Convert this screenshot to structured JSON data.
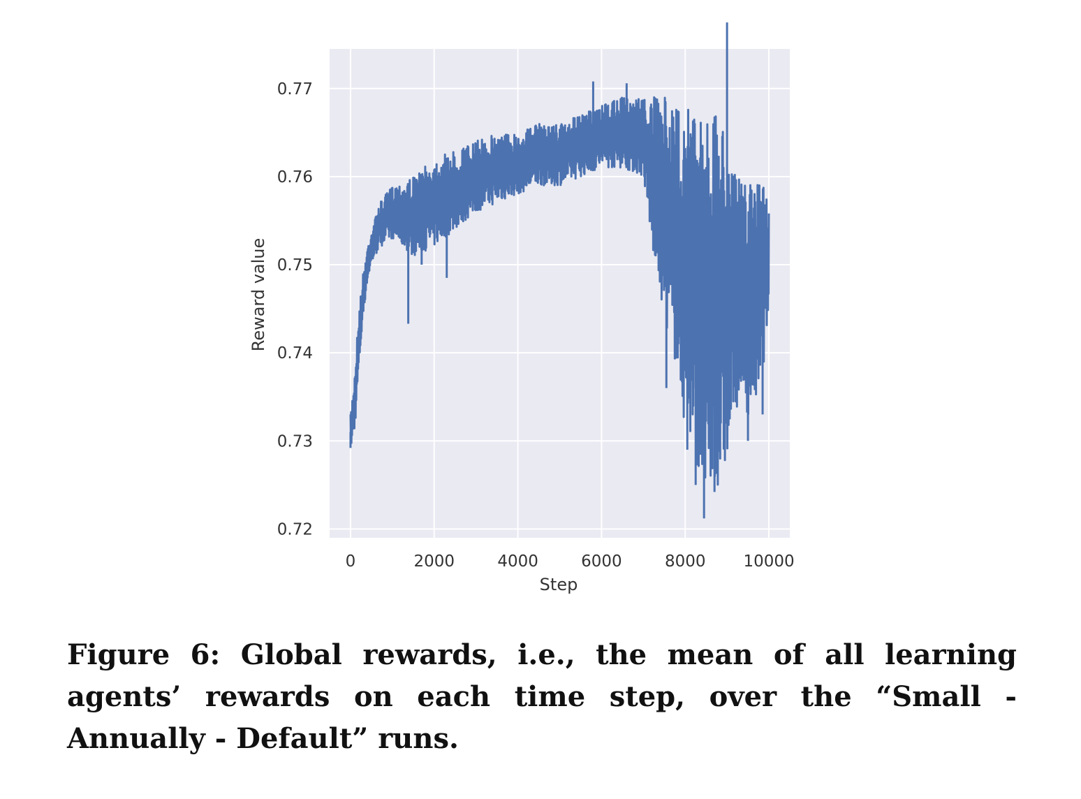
{
  "chart_data": {
    "type": "line",
    "xlabel": "Step",
    "ylabel": "Reward value",
    "xlim": [
      -500,
      10500
    ],
    "ylim": [
      0.719,
      0.7745
    ],
    "xticks": [
      0,
      2000,
      4000,
      6000,
      8000,
      10000
    ],
    "xtick_labels": [
      "0",
      "2000",
      "4000",
      "6000",
      "8000",
      "10000"
    ],
    "yticks": [
      0.72,
      0.73,
      0.74,
      0.75,
      0.76,
      0.77
    ],
    "ytick_labels": [
      "0.72",
      "0.73",
      "0.74",
      "0.75",
      "0.76",
      "0.77"
    ],
    "grid": true,
    "style": "seaborn-darkgrid",
    "line_color": "#4c72b0",
    "background_color": "#eaeaf2",
    "series": [
      {
        "x": [
          0,
          100,
          200,
          300,
          400,
          500,
          700,
          1000,
          1500,
          2000,
          2500,
          3000,
          3500,
          4000,
          4500,
          5000,
          5500,
          6000,
          6500,
          7000,
          7200,
          7500,
          7800,
          8000,
          8300,
          8500,
          8800,
          9000,
          9200,
          9500,
          9800,
          10000
        ],
        "upper": [
          0.733,
          0.738,
          0.745,
          0.749,
          0.752,
          0.754,
          0.757,
          0.759,
          0.76,
          0.762,
          0.763,
          0.764,
          0.765,
          0.765,
          0.766,
          0.766,
          0.767,
          0.768,
          0.769,
          0.769,
          0.769,
          0.769,
          0.768,
          0.768,
          0.768,
          0.767,
          0.767,
          0.766,
          0.76,
          0.759,
          0.76,
          0.758
        ],
        "lower": [
          0.729,
          0.731,
          0.738,
          0.744,
          0.748,
          0.75,
          0.752,
          0.753,
          0.751,
          0.752,
          0.754,
          0.756,
          0.757,
          0.758,
          0.759,
          0.759,
          0.76,
          0.761,
          0.761,
          0.76,
          0.752,
          0.744,
          0.738,
          0.731,
          0.727,
          0.722,
          0.725,
          0.727,
          0.734,
          0.733,
          0.735,
          0.745
        ],
        "spikes": [
          {
            "x": 0,
            "y": 0.7292
          },
          {
            "x": 1380,
            "y": 0.7433
          },
          {
            "x": 1700,
            "y": 0.75
          },
          {
            "x": 2300,
            "y": 0.7485
          },
          {
            "x": 5800,
            "y": 0.7708
          },
          {
            "x": 6600,
            "y": 0.7706
          },
          {
            "x": 7550,
            "y": 0.736
          },
          {
            "x": 8050,
            "y": 0.729
          },
          {
            "x": 8250,
            "y": 0.725
          },
          {
            "x": 8450,
            "y": 0.7212
          },
          {
            "x": 8700,
            "y": 0.7242
          },
          {
            "x": 9000,
            "y": 0.7775
          },
          {
            "x": 9500,
            "y": 0.73
          },
          {
            "x": 9850,
            "y": 0.733
          }
        ]
      }
    ]
  },
  "caption": "Figure 6: Global rewards, i.e., the mean of all learning agents’ rewards on each time step, over the “Small - Annually - Default” runs."
}
